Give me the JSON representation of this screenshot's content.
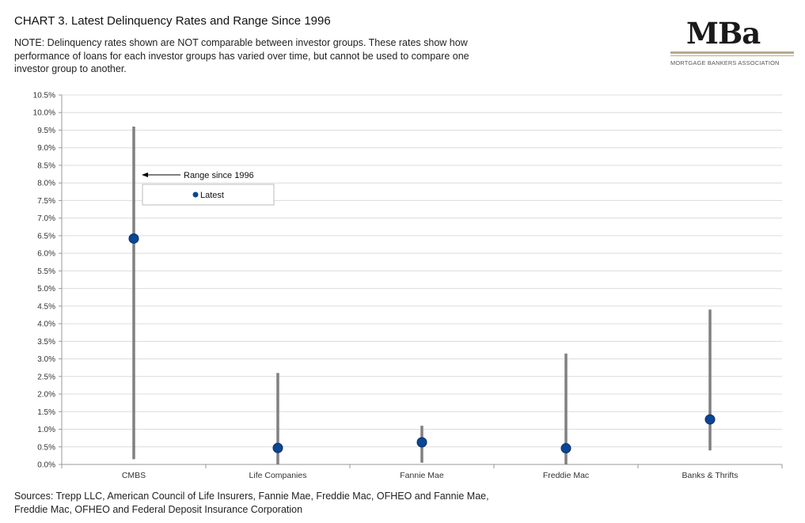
{
  "header": {
    "title": "CHART 3.  Latest Delinquency Rates and Range Since 1996",
    "note": "NOTE: Delinquency rates shown are NOT comparable between investor groups.  These rates show how performance of loans for each investor groups has varied over time, but cannot be used to compare one investor group to another."
  },
  "logo": {
    "word": "MBa",
    "subtitle": "MORTGAGE BANKERS ASSOCIATION"
  },
  "footer": {
    "sources": "Sources: Trepp LLC, American Council of Life Insurers, Fannie Mae, Freddie Mac, OFHEO and Fannie Mae, Freddie Mac, OFHEO and Federal Deposit Insurance Corporation"
  },
  "chart_data": {
    "type": "range-dot",
    "title": "Latest Delinquency Rates and Range Since 1996",
    "categories": [
      "CMBS",
      "Life Companies",
      "Fannie Mae",
      "Freddie Mac",
      "Banks & Thrifts"
    ],
    "series": [
      {
        "name": "Range since 1996",
        "kind": "range",
        "low": [
          0.15,
          0.0,
          0.05,
          0.0,
          0.4
        ],
        "high": [
          9.6,
          2.6,
          1.1,
          3.15,
          4.4
        ]
      },
      {
        "name": "Latest",
        "kind": "point",
        "values": [
          6.42,
          0.47,
          0.63,
          0.46,
          1.28
        ]
      }
    ],
    "y_ticks": [
      "0.0%",
      "0.5%",
      "1.0%",
      "1.5%",
      "2.0%",
      "2.5%",
      "3.0%",
      "3.5%",
      "4.0%",
      "4.5%",
      "5.0%",
      "5.5%",
      "6.0%",
      "6.5%",
      "7.0%",
      "7.5%",
      "8.0%",
      "8.5%",
      "9.0%",
      "9.5%",
      "10.0%",
      "10.5%"
    ],
    "ylim": [
      0,
      10.5
    ],
    "grid": true,
    "legend": {
      "range_label": "Range since 1996",
      "point_label": "Latest",
      "placement": "top-left"
    },
    "colors": {
      "range": "#808080",
      "point": "#0b4595",
      "point_edge": "#0a2f66",
      "grid": "#dcdcdc",
      "axis": "#999999"
    }
  }
}
